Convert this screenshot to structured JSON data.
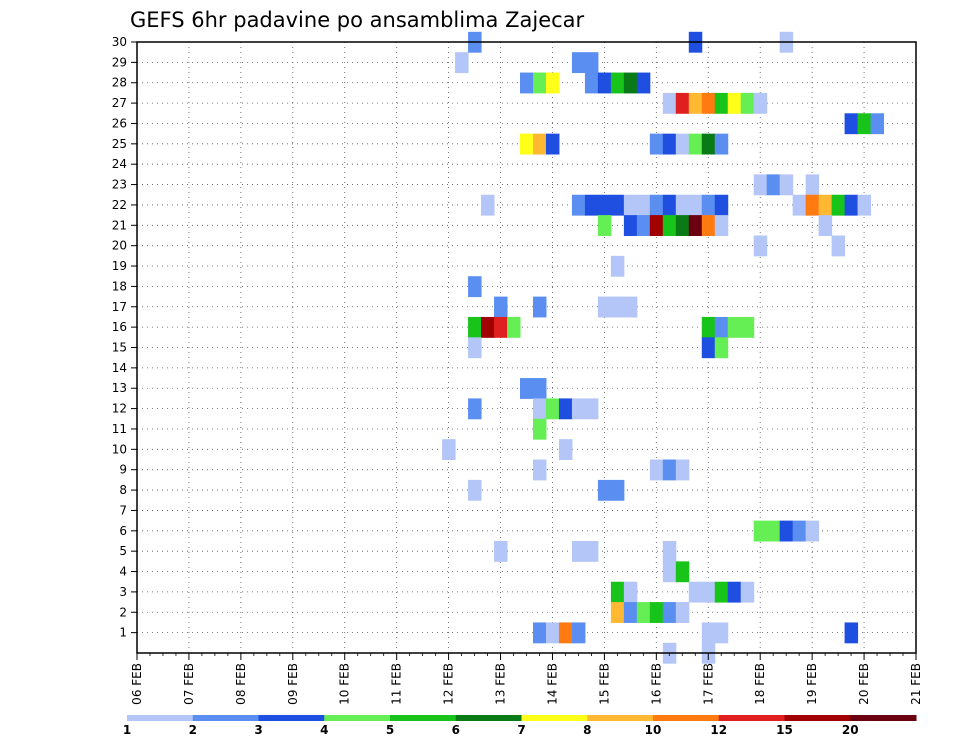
{
  "chart_data": {
    "type": "heatmap",
    "title": "GEFS 6hr padavine po ansamblima Zajecar",
    "x_tick_labels": [
      "06 FEB",
      "07 FEB",
      "08 FEB",
      "09 FEB",
      "10 FEB",
      "11 FEB",
      "12 FEB",
      "13 FEB",
      "14 FEB",
      "15 FEB",
      "16 FEB",
      "17 FEB",
      "18 FEB",
      "19 FEB",
      "20 FEB",
      "21 FEB"
    ],
    "y_tick_labels": [
      "1",
      "2",
      "3",
      "4",
      "5",
      "6",
      "7",
      "8",
      "9",
      "10",
      "11",
      "12",
      "13",
      "14",
      "15",
      "16",
      "17",
      "18",
      "19",
      "20",
      "21",
      "22",
      "23",
      "24",
      "25",
      "26",
      "27",
      "28",
      "29",
      "30"
    ],
    "xlim_days": [
      0,
      15
    ],
    "ylim": [
      0,
      30
    ],
    "grid": true,
    "levels": [
      "1",
      "2",
      "3",
      "4",
      "5",
      "6",
      "7",
      "8",
      "10",
      "12",
      "15",
      "20"
    ],
    "colors": [
      "#b3c6f7",
      "#5a8ef0",
      "#1f4fe0",
      "#66ee55",
      "#18c41a",
      "#0a7a17",
      "#ffff1a",
      "#ffb832",
      "#ff7a10",
      "#e02020",
      "#a00000",
      "#6a0010"
    ],
    "cells": [
      [
        30,
        6.5,
        1
      ],
      [
        30,
        10.75,
        2
      ],
      [
        30,
        12.5,
        0
      ],
      [
        29,
        6.25,
        0
      ],
      [
        29,
        8.5,
        1
      ],
      [
        29,
        8.75,
        1
      ],
      [
        28,
        7.5,
        1
      ],
      [
        28,
        7.75,
        3
      ],
      [
        28,
        8,
        6
      ],
      [
        28,
        8.75,
        1
      ],
      [
        28,
        9,
        2
      ],
      [
        28,
        9.25,
        4
      ],
      [
        28,
        9.5,
        5
      ],
      [
        28,
        9.75,
        2
      ],
      [
        27,
        10.25,
        0
      ],
      [
        27,
        10.5,
        9
      ],
      [
        27,
        10.75,
        7
      ],
      [
        27,
        11,
        8
      ],
      [
        27,
        11.25,
        4
      ],
      [
        27,
        11.5,
        6
      ],
      [
        27,
        11.75,
        3
      ],
      [
        27,
        12,
        0
      ],
      [
        26,
        13.75,
        2
      ],
      [
        26,
        14,
        4
      ],
      [
        26,
        14.25,
        1
      ],
      [
        25,
        7.5,
        6
      ],
      [
        25,
        7.75,
        7
      ],
      [
        25,
        8,
        2
      ],
      [
        25,
        10,
        1
      ],
      [
        25,
        10.25,
        2
      ],
      [
        25,
        10.5,
        0
      ],
      [
        25,
        10.75,
        3
      ],
      [
        25,
        11,
        5
      ],
      [
        25,
        11.25,
        1
      ],
      [
        23,
        12,
        0
      ],
      [
        23,
        12.25,
        1
      ],
      [
        23,
        12.5,
        0
      ],
      [
        23,
        13,
        0
      ],
      [
        22,
        6.75,
        0
      ],
      [
        22,
        8.5,
        1
      ],
      [
        22,
        8.75,
        2
      ],
      [
        22,
        9,
        2
      ],
      [
        22,
        9.25,
        2
      ],
      [
        22,
        9.5,
        0
      ],
      [
        22,
        9.75,
        0
      ],
      [
        22,
        10,
        1
      ],
      [
        22,
        10.25,
        2
      ],
      [
        22,
        10.5,
        0
      ],
      [
        22,
        10.75,
        0
      ],
      [
        22,
        11,
        1
      ],
      [
        22,
        11.25,
        2
      ],
      [
        22,
        12.75,
        0
      ],
      [
        22,
        13,
        8
      ],
      [
        22,
        13.25,
        7
      ],
      [
        22,
        13.5,
        4
      ],
      [
        22,
        13.75,
        2
      ],
      [
        22,
        14,
        0
      ],
      [
        21,
        9,
        3
      ],
      [
        21,
        9.5,
        2
      ],
      [
        21,
        9.75,
        1
      ],
      [
        21,
        10,
        10
      ],
      [
        21,
        10.25,
        4
      ],
      [
        21,
        10.5,
        5
      ],
      [
        21,
        10.75,
        11
      ],
      [
        21,
        11,
        8
      ],
      [
        21,
        11.25,
        0
      ],
      [
        21,
        13.25,
        0
      ],
      [
        20,
        12,
        0
      ],
      [
        20,
        13.5,
        0
      ],
      [
        19,
        9.25,
        0
      ],
      [
        18,
        6.5,
        1
      ],
      [
        17,
        7,
        1
      ],
      [
        17,
        7.75,
        1
      ],
      [
        17,
        9,
        0
      ],
      [
        17,
        9.25,
        0
      ],
      [
        17,
        9.5,
        0
      ],
      [
        16,
        6.5,
        4
      ],
      [
        16,
        6.75,
        10
      ],
      [
        16,
        7,
        9
      ],
      [
        16,
        7.25,
        3
      ],
      [
        16,
        11,
        4
      ],
      [
        16,
        11.25,
        1
      ],
      [
        16,
        11.5,
        3
      ],
      [
        16,
        11.75,
        3
      ],
      [
        15,
        6.5,
        0
      ],
      [
        15,
        11,
        2
      ],
      [
        15,
        11.25,
        3
      ],
      [
        13,
        7.5,
        1
      ],
      [
        13,
        7.75,
        1
      ],
      [
        12,
        6.5,
        1
      ],
      [
        12,
        7.75,
        0
      ],
      [
        12,
        8,
        3
      ],
      [
        12,
        8.25,
        2
      ],
      [
        12,
        8.5,
        0
      ],
      [
        12,
        8.75,
        0
      ],
      [
        11,
        7.75,
        3
      ],
      [
        10,
        6,
        0
      ],
      [
        10,
        8.25,
        0
      ],
      [
        9,
        7.75,
        0
      ],
      [
        9,
        10,
        0
      ],
      [
        9,
        10.25,
        1
      ],
      [
        9,
        10.5,
        0
      ],
      [
        8,
        6.5,
        0
      ],
      [
        8,
        9,
        1
      ],
      [
        8,
        9.25,
        1
      ],
      [
        6,
        12,
        3
      ],
      [
        6,
        12.25,
        3
      ],
      [
        6,
        12.5,
        2
      ],
      [
        6,
        12.75,
        1
      ],
      [
        6,
        13,
        0
      ],
      [
        5,
        7,
        0
      ],
      [
        5,
        8.5,
        0
      ],
      [
        5,
        8.75,
        0
      ],
      [
        5,
        10.25,
        0
      ],
      [
        4,
        10.25,
        0
      ],
      [
        4,
        10.5,
        4
      ],
      [
        3,
        9.25,
        4
      ],
      [
        3,
        9.5,
        0
      ],
      [
        3,
        10.75,
        0
      ],
      [
        3,
        11,
        0
      ],
      [
        3,
        11.25,
        4
      ],
      [
        3,
        11.5,
        2
      ],
      [
        3,
        11.75,
        0
      ],
      [
        2,
        9.25,
        7
      ],
      [
        2,
        9.5,
        1
      ],
      [
        2,
        9.75,
        3
      ],
      [
        2,
        10,
        4
      ],
      [
        2,
        10.25,
        1
      ],
      [
        2,
        10.5,
        0
      ],
      [
        1,
        7.75,
        1
      ],
      [
        1,
        8,
        0
      ],
      [
        1,
        8.25,
        8
      ],
      [
        1,
        8.5,
        1
      ],
      [
        1,
        11,
        0
      ],
      [
        1,
        11.25,
        0
      ],
      [
        1,
        13.75,
        2
      ],
      [
        0,
        10.25,
        0
      ],
      [
        0,
        11,
        0
      ]
    ]
  }
}
